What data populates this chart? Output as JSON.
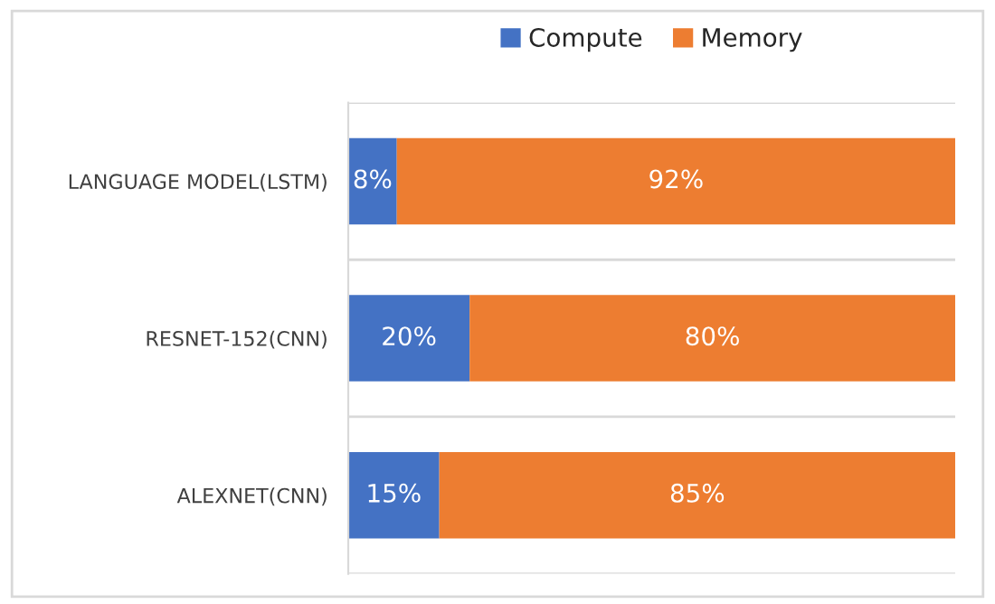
{
  "chart_data": {
    "type": "bar",
    "orientation": "horizontal",
    "stacked": true,
    "categories": [
      "LANGUAGE MODEL(LSTM)",
      "RESNET-152(CNN)",
      "ALEXNET(CNN)"
    ],
    "series": [
      {
        "name": "Compute",
        "color": "#4472c4",
        "values": [
          8,
          20,
          15
        ],
        "value_labels": [
          "8%",
          "20%",
          "15%"
        ]
      },
      {
        "name": "Memory",
        "color": "#ed7d31",
        "values": [
          92,
          80,
          85
        ],
        "value_labels": [
          "92%",
          "80%",
          "85%"
        ]
      }
    ],
    "legend": "top",
    "grid": "y"
  }
}
